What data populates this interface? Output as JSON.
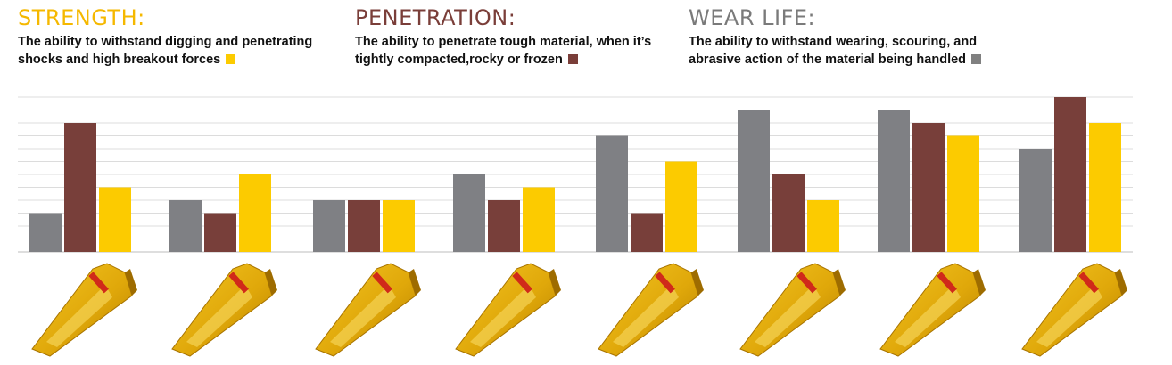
{
  "legend": [
    {
      "title": "STRENGTH:",
      "line1": "The ability to withstand digging and penetrating",
      "line2": "shocks and high breakout forces",
      "color": "#fccb00"
    },
    {
      "title": "PENETRATION:",
      "line1": "The ability to penetrate tough material, when it’s",
      "line2": "tightly compacted,rocky or frozen",
      "color": "#7a3e39"
    },
    {
      "title": "WEAR LIFE:",
      "line1": "The ability to withstand wearing, scouring, and",
      "line2": "abrasive action of the material being handled",
      "color": "#808080"
    }
  ],
  "chart_data": {
    "type": "bar",
    "grid": true,
    "ylim": [
      0,
      12
    ],
    "categories": [
      "",
      "",
      "",
      "",
      "",
      "",
      "",
      ""
    ],
    "series": [
      {
        "key": "wear",
        "color": "#7f8084",
        "values": [
          3,
          4,
          4,
          6,
          9,
          11,
          11,
          8
        ]
      },
      {
        "key": "penetration",
        "color": "#783f3a",
        "values": [
          10,
          3,
          4,
          4,
          3,
          6,
          10,
          12
        ]
      },
      {
        "key": "strength",
        "color": "#fccb00",
        "values": [
          5,
          6,
          4,
          5,
          7,
          4,
          9,
          10
        ]
      }
    ]
  }
}
